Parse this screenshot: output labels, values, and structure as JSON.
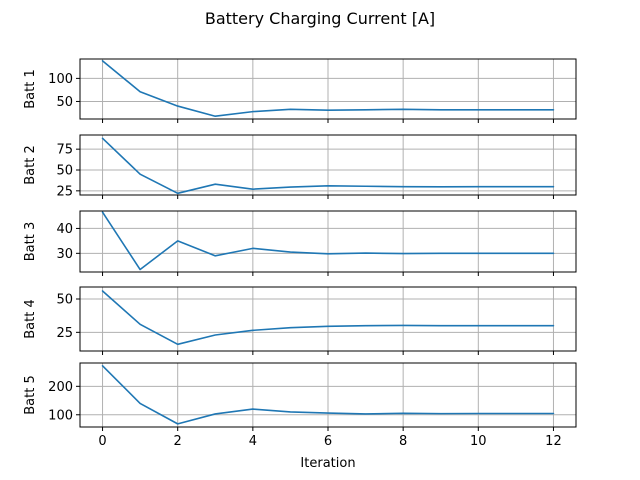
{
  "figure": {
    "title": "Battery Charging Current [A]"
  },
  "chart_data": {
    "type": "line",
    "title": "Battery Charging Current [A]",
    "xlabel": "Iteration",
    "x": [
      0,
      1,
      2,
      3,
      4,
      5,
      6,
      7,
      8,
      9,
      10,
      11,
      12
    ],
    "xlim": [
      -0.6,
      12.6
    ],
    "xticks": [
      0,
      2,
      4,
      6,
      8,
      10,
      12
    ],
    "grid": true,
    "color": "#1f77b4",
    "subplots": [
      {
        "ylabel": "Batt 1",
        "ylim": [
          12,
          142
        ],
        "yticks": [
          50,
          100
        ],
        "values": [
          138,
          71,
          40,
          18,
          28,
          33,
          31,
          32,
          33,
          32,
          32,
          32,
          32
        ]
      },
      {
        "ylabel": "Batt 2",
        "ylim": [
          20,
          92
        ],
        "yticks": [
          25,
          50,
          75
        ],
        "values": [
          88,
          45,
          22,
          33,
          27,
          29.5,
          31,
          30.5,
          30,
          29.8,
          30,
          30,
          30
        ]
      },
      {
        "ylabel": "Batt 3",
        "ylim": [
          22.5,
          47
        ],
        "yticks": [
          30,
          40
        ],
        "values": [
          46.5,
          23.5,
          35,
          29,
          32,
          30.5,
          29.8,
          30.1,
          29.9,
          30,
          30,
          30,
          30
        ]
      },
      {
        "ylabel": "Batt 4",
        "ylim": [
          11,
          59
        ],
        "yticks": [
          25,
          50
        ],
        "values": [
          56,
          31,
          16,
          23,
          26.5,
          28.5,
          29.5,
          30,
          30.2,
          30,
          30,
          30,
          30
        ]
      },
      {
        "ylabel": "Batt 5",
        "ylim": [
          57,
          282
        ],
        "yticks": [
          100,
          200
        ],
        "values": [
          272,
          140,
          68,
          103,
          120,
          110,
          106,
          103,
          105,
          104,
          104.5,
          104.5,
          104.5
        ]
      }
    ]
  }
}
